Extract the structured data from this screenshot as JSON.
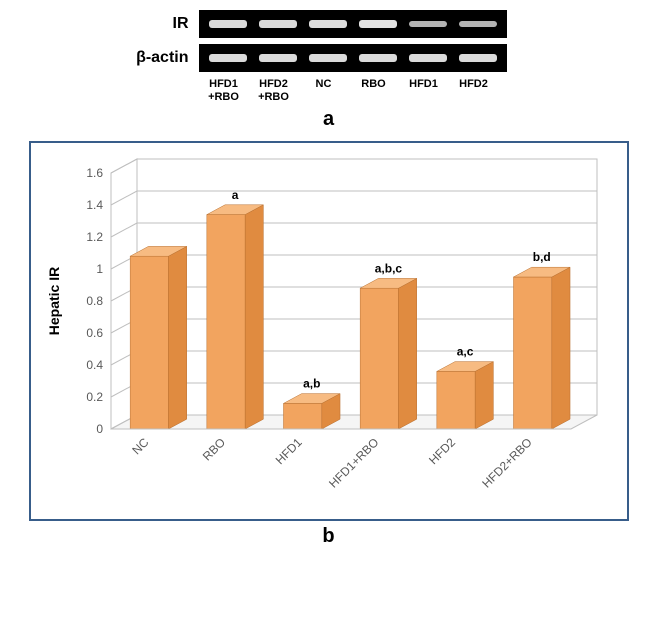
{
  "panel_a": {
    "rows": [
      {
        "label": "IR",
        "band_intensities": [
          0.75,
          0.75,
          0.78,
          0.82,
          0.45,
          0.45
        ]
      },
      {
        "label": "β-actin",
        "band_intensities": [
          0.75,
          0.75,
          0.75,
          0.75,
          0.75,
          0.75
        ]
      }
    ],
    "lanes": [
      {
        "top": "HFD1",
        "bot": "+RBO"
      },
      {
        "top": "HFD2",
        "bot": "+RBO"
      },
      {
        "top": "NC",
        "bot": ""
      },
      {
        "top": "RBO",
        "bot": ""
      },
      {
        "top": "HFD1",
        "bot": ""
      },
      {
        "top": "HFD2",
        "bot": ""
      }
    ],
    "label": "a",
    "gel_background": "#000000",
    "band_base_color": "#d8d8d8",
    "label_fontsize": 16,
    "lane_label_fontsize": 11
  },
  "panel_b": {
    "type": "bar-3d",
    "ylabel": "Hepatic IR",
    "ylabel_fontsize": 14,
    "ylim": [
      0,
      1.6
    ],
    "ytick_step": 0.2,
    "categories": [
      "NC",
      "RBO",
      "HFD1",
      "HFD1+RBO",
      "HFD2",
      "HFD2+RBO"
    ],
    "values": [
      1.08,
      1.34,
      0.16,
      0.88,
      0.36,
      0.95
    ],
    "annotations": [
      "",
      "a",
      "a,b",
      "a,b,c",
      "a,c",
      "b,d"
    ],
    "bar_color": "#f2a45f",
    "bar_side_color": "#e08b40",
    "bar_top_color": "#f7bb82",
    "wall_color": "#ffffff",
    "floor_color": "#f5f5f5",
    "grid_color": "#bfbfbf",
    "border_color": "#385d8a",
    "axis_font_color": "#595959",
    "axis_fontsize": 12,
    "annotation_fontsize": 12,
    "label_fontsize_cat": 12,
    "label": "b"
  }
}
